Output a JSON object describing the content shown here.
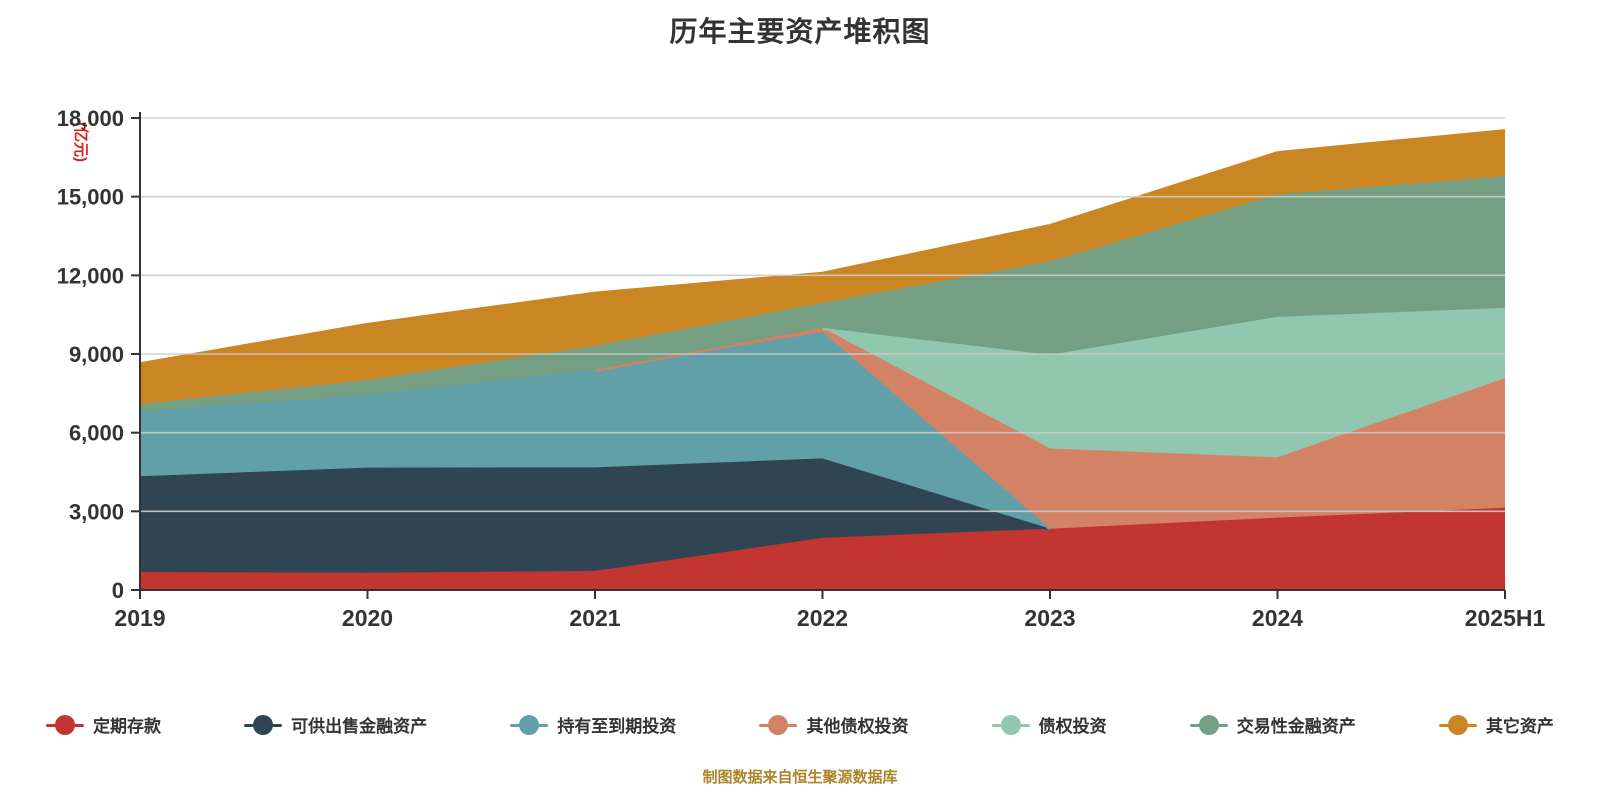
{
  "chart_data": {
    "type": "area",
    "stacked": true,
    "title": "历年主要资产堆积图",
    "unit_label": "(亿元)",
    "note": "制图数据来自恒生聚源数据库",
    "x": [
      "2019",
      "2020",
      "2021",
      "2022",
      "2023",
      "2024",
      "2025H1"
    ],
    "series": [
      {
        "name": "定期存款",
        "key": "time-deposits",
        "color": "#c23531",
        "values": [
          650,
          620,
          690,
          1950,
          2300,
          2720,
          3100
        ]
      },
      {
        "name": "可供出售金融资产",
        "key": "available-for-sale-assets",
        "color": "#2f4554",
        "values": [
          3650,
          4010,
          3950,
          3030,
          0,
          0,
          0
        ]
      },
      {
        "name": "持有至到期投资",
        "key": "held-to-maturity",
        "color": "#61a0a8",
        "values": [
          2480,
          2760,
          3710,
          4820,
          0,
          0,
          0
        ]
      },
      {
        "name": "其他债权投资",
        "key": "other-debt-investments",
        "color": "#d48265",
        "values": [
          0,
          0,
          0,
          160,
          3060,
          2300,
          4940
        ]
      },
      {
        "name": "债权投资",
        "key": "debt-investments",
        "color": "#91c7ae",
        "values": [
          0,
          0,
          0,
          0,
          3570,
          5360,
          2680
        ]
      },
      {
        "name": "交易性金融资产",
        "key": "trading-financial-assets",
        "color": "#749f83",
        "values": [
          270,
          580,
          920,
          950,
          3560,
          4670,
          5020
        ]
      },
      {
        "name": "其它资产",
        "key": "other-assets",
        "color": "#ca8622",
        "values": [
          1600,
          2180,
          2070,
          1190,
          1430,
          1650,
          1800
        ]
      }
    ],
    "ylim": [
      0,
      18000
    ],
    "ytick_step": 3000,
    "grid": true,
    "legend_position": "bottom",
    "colors": {
      "title_text": "#333333",
      "axis_line": "#333333",
      "tick_label": "#333333",
      "gridline": "#cccccc",
      "unit_label_text": "#e01b1b",
      "note_text": "#ab842b",
      "background": "#ffffff"
    }
  }
}
